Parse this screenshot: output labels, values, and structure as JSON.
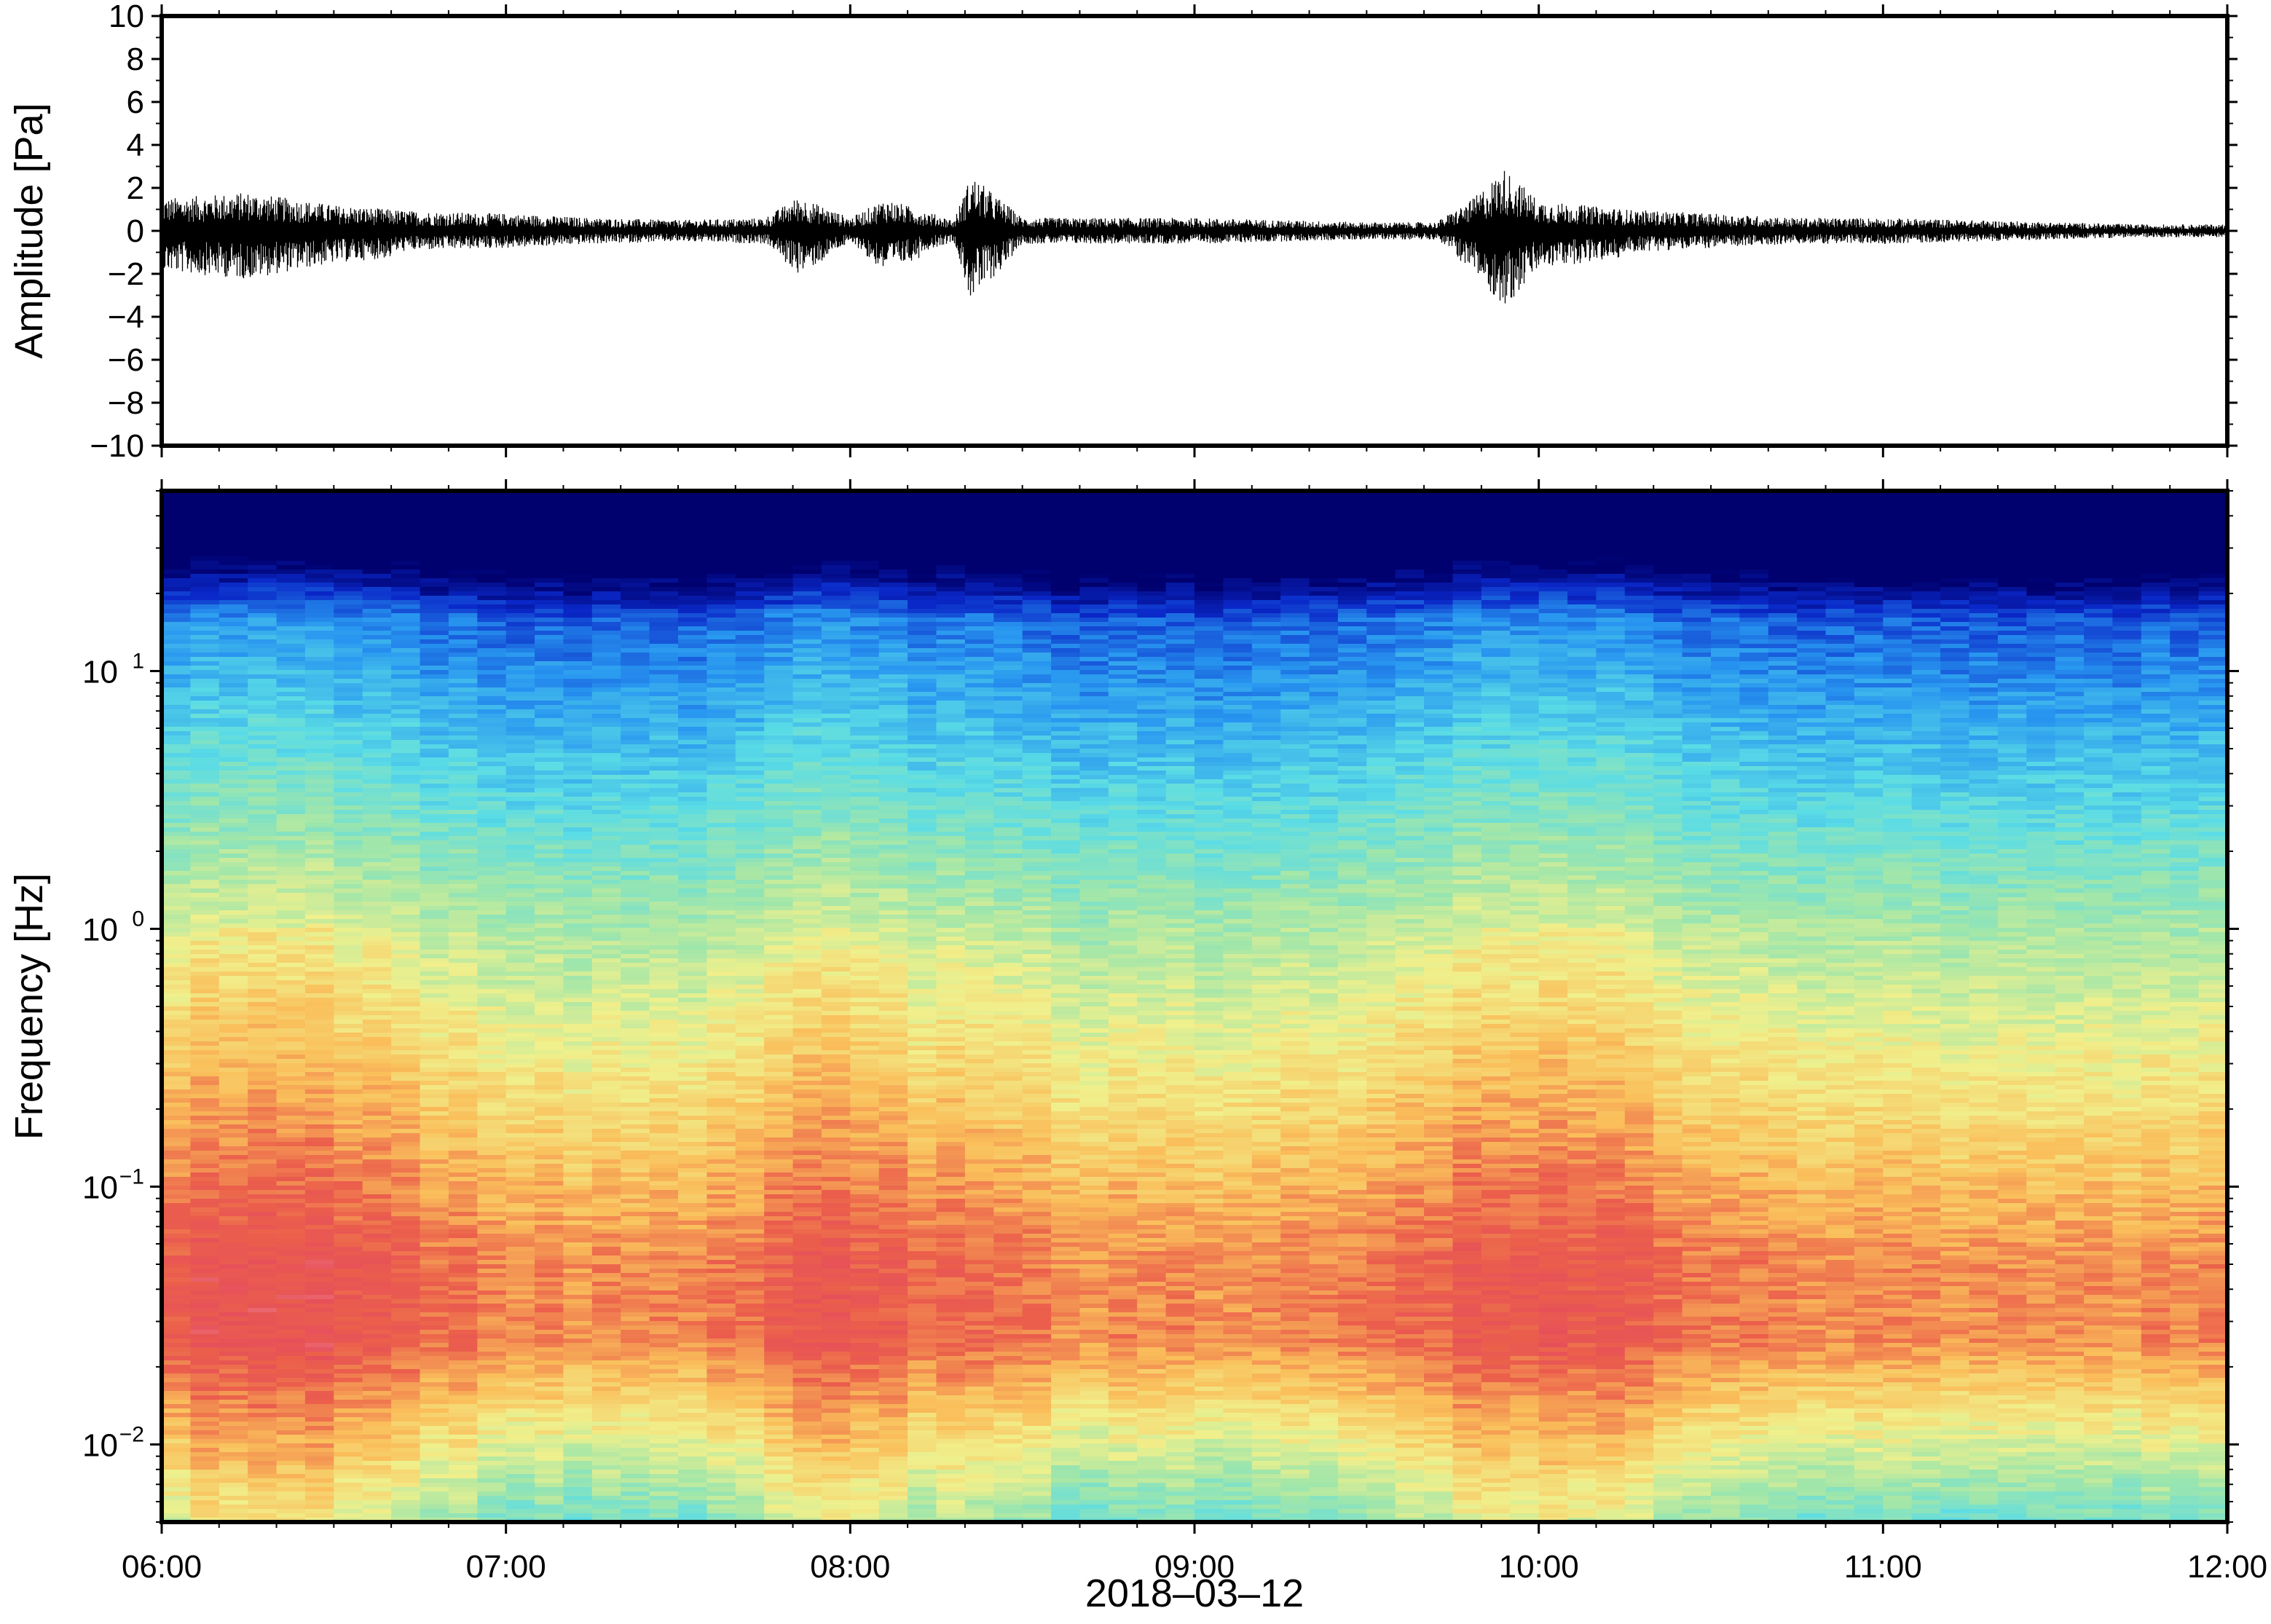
{
  "chart_data": [
    {
      "type": "line",
      "title": "",
      "xlabel": "",
      "ylabel": "Amplitude [Pa]",
      "ylim": [
        -10,
        10
      ],
      "yticks": [
        "10",
        "8",
        "6",
        "4",
        "2",
        "0",
        "−2",
        "−4",
        "−6",
        "−8",
        "−10"
      ],
      "ytick_values": [
        10,
        8,
        6,
        4,
        2,
        0,
        -2,
        -4,
        -6,
        -8,
        -10
      ],
      "xlim": [
        "06:00",
        "12:00"
      ],
      "grid": false,
      "legend": "none",
      "color": "#000000",
      "description_of_series": "waveform envelope (approx. peak amplitude per time block)",
      "series": [
        {
          "envelope_time_hours": [
            6.0,
            6.25,
            6.5,
            6.75,
            7.0,
            7.25,
            7.5,
            7.75,
            7.85,
            8.0,
            8.1,
            8.3,
            8.35,
            8.5,
            8.75,
            9.0,
            9.25,
            9.5,
            9.7,
            9.8,
            9.9,
            10.0,
            10.25,
            10.5,
            10.75,
            11.0,
            11.25,
            11.5,
            11.75,
            12.0
          ],
          "envelope_peak_pa": [
            1.5,
            1.8,
            1.2,
            0.9,
            0.8,
            0.6,
            0.5,
            0.6,
            1.6,
            0.6,
            1.5,
            0.5,
            2.6,
            0.6,
            0.6,
            0.6,
            0.5,
            0.4,
            0.4,
            1.4,
            2.9,
            1.4,
            1.0,
            0.8,
            0.6,
            0.6,
            0.5,
            0.4,
            0.3,
            0.3
          ]
        }
      ]
    },
    {
      "type": "heatmap",
      "title": "",
      "xlabel": "2018–03–12",
      "ylabel": "Frequency [Hz]",
      "yscale": "log",
      "ylim": [
        0.005,
        50
      ],
      "yticks": [
        {
          "base": "10",
          "exp": "−2",
          "value": 0.01
        },
        {
          "base": "10",
          "exp": "−1",
          "value": 0.1
        },
        {
          "base": "10",
          "exp": "0",
          "value": 1
        },
        {
          "base": "10",
          "exp": "1",
          "value": 10
        }
      ],
      "categories": [
        "06:00",
        "07:00",
        "08:00",
        "09:00",
        "10:00",
        "11:00",
        "12:00"
      ],
      "xlim": [
        "06:00",
        "12:00"
      ],
      "colormap": "spectral (dark blue low power → cyan → yellow → red → pink high power)",
      "grid": false,
      "legend": "none"
    }
  ]
}
